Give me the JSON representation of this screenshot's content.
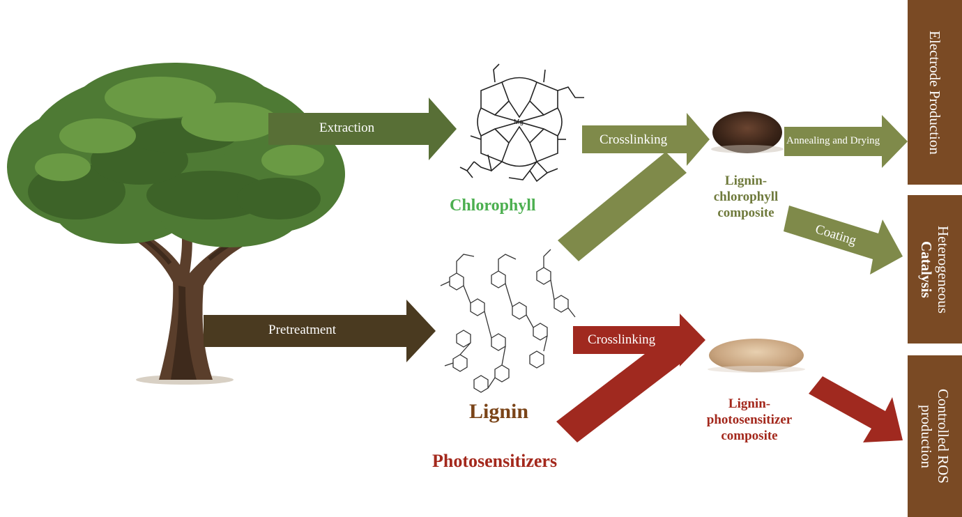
{
  "arrows": {
    "extraction": "Extraction",
    "pretreatment": "Pretreatment",
    "crosslinking_top": "Crosslinking",
    "crosslinking_bottom": "Crosslinking",
    "annealing": "Annealing and Drying",
    "coating": "Coating"
  },
  "molecules": {
    "chlorophyll": "Chlorophyll",
    "lignin": "Lignin",
    "photosensitizers": "Photosensitizers",
    "mg_atom": "Mg"
  },
  "composites": {
    "chlorophyll_line1": "Lignin-",
    "chlorophyll_line2": "chlorophyll",
    "chlorophyll_line3": "composite",
    "photo_line1": "Lignin-",
    "photo_line2": "photosensitizer",
    "photo_line3": "composite"
  },
  "applications": {
    "electrode": "Electrode Production",
    "catalysis_line1": "Heterogeneous",
    "catalysis_line2": "Catalysis",
    "ros_line1": "Controlled ROS",
    "ros_line2": "production"
  },
  "colors": {
    "extraction_green": "#586f36",
    "olive": "#7f8a4a",
    "pretreatment_brown": "#4a3a20",
    "red": "#a0291f",
    "panel_brown": "#7a4a24",
    "chlorophyll_text": "#4caf50",
    "lignin_text": "#7a4418",
    "photosensitizer_text": "#a3281c"
  }
}
